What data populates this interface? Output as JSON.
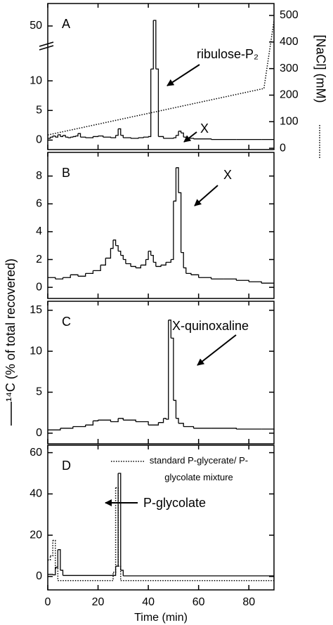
{
  "chart_data": [
    {
      "type": "line",
      "label": "A",
      "xlim": [
        0,
        90
      ],
      "xticks": [
        0,
        20,
        40,
        60,
        80
      ],
      "ylim": [
        -1.6,
        58
      ],
      "ybreak": [
        14,
        45
      ],
      "yticks": [
        0,
        5,
        10,
        50
      ],
      "y2lim": [
        -5,
        545
      ],
      "y2ticks": [
        0,
        100,
        200,
        300,
        400,
        500
      ],
      "y2label": "[NaCl] (mM)",
      "annotations": [
        "ribulose-P₂",
        "X"
      ],
      "series": [
        {
          "color": "#000000",
          "step": true,
          "dash": false,
          "x": [
            0,
            1,
            2,
            3,
            4,
            5,
            6,
            7,
            8,
            9,
            10,
            11,
            12,
            13,
            15,
            18,
            20,
            22,
            25,
            27,
            28,
            29,
            30,
            33,
            36,
            38,
            40,
            41,
            42,
            43,
            44,
            46,
            50,
            51,
            52,
            53,
            54,
            55,
            58,
            65,
            75,
            85,
            90
          ],
          "values": [
            0.3,
            0.5,
            0.7,
            0.5,
            0.9,
            0.6,
            0.8,
            0.5,
            0.4,
            0.5,
            0.6,
            0.7,
            1.1,
            0.5,
            0.4,
            0.6,
            0.7,
            0.5,
            0.4,
            0.8,
            1.9,
            0.8,
            0.4,
            0.3,
            0.4,
            0.5,
            0.6,
            12,
            52,
            12,
            0.6,
            0.3,
            0.4,
            0.8,
            1.5,
            1.2,
            0.5,
            0.3,
            0.2,
            0.1,
            0.1,
            0.1,
            0.1
          ]
        },
        {
          "color": "#000000",
          "step": false,
          "dash": true,
          "axis": "y2",
          "x": [
            0,
            86,
            90
          ],
          "values": [
            50,
            225,
            480
          ]
        }
      ]
    },
    {
      "type": "line",
      "label": "B",
      "xlim": [
        0,
        90
      ],
      "xticks": [
        0,
        20,
        40,
        60,
        80
      ],
      "ylim": [
        -0.8,
        9.7
      ],
      "yticks": [
        0,
        2,
        4,
        6,
        8
      ],
      "annotations": [
        "X"
      ],
      "series": [
        {
          "color": "#000000",
          "step": true,
          "dash": false,
          "x": [
            0,
            3,
            6,
            9,
            12,
            15,
            18,
            21,
            23,
            25,
            26,
            27,
            28,
            29,
            30,
            31,
            33,
            35,
            37,
            39,
            40,
            41,
            42,
            43,
            45,
            47,
            49,
            50,
            51,
            52,
            53,
            54,
            55,
            57,
            60,
            65,
            70,
            75,
            80,
            85,
            90
          ],
          "values": [
            0.7,
            0.6,
            0.7,
            0.9,
            0.8,
            1.0,
            1.2,
            1.6,
            2.1,
            2.8,
            3.4,
            3.0,
            2.6,
            2.3,
            2.0,
            1.7,
            1.5,
            1.4,
            1.6,
            2.0,
            2.6,
            2.3,
            1.8,
            1.5,
            1.6,
            1.8,
            2.0,
            6.2,
            8.6,
            6.8,
            2.5,
            1.4,
            1.0,
            0.9,
            0.7,
            0.6,
            0.6,
            0.5,
            0.4,
            0.3,
            0.3
          ]
        }
      ]
    },
    {
      "type": "line",
      "label": "C",
      "xlim": [
        0,
        90
      ],
      "xticks": [
        0,
        20,
        40,
        60,
        80
      ],
      "ylim": [
        -1.3,
        16.1
      ],
      "yticks": [
        0,
        5,
        10,
        15
      ],
      "ylabel": "¹⁴C (% of total recovered)",
      "annotations": [
        "X-quinoxaline"
      ],
      "series": [
        {
          "color": "#000000",
          "step": true,
          "dash": false,
          "x": [
            0,
            5,
            10,
            15,
            18,
            20,
            25,
            28,
            30,
            35,
            40,
            44,
            46,
            47,
            48,
            49,
            50,
            51,
            52,
            54,
            58,
            65,
            75,
            85,
            90
          ],
          "values": [
            0.4,
            0.6,
            0.8,
            1.0,
            1.5,
            1.6,
            1.4,
            1.8,
            1.6,
            1.4,
            1.0,
            1.3,
            1.8,
            1.7,
            13.8,
            11.6,
            4.0,
            1.8,
            1.2,
            0.8,
            0.6,
            0.6,
            0.5,
            0.5,
            0.4
          ]
        }
      ]
    },
    {
      "type": "line",
      "label": "D",
      "xlim": [
        0,
        90
      ],
      "xticks": [
        0,
        20,
        40,
        60,
        80
      ],
      "xlabel": "Time (min)",
      "ylim": [
        -6.5,
        63.6
      ],
      "yticks": [
        0,
        20,
        40,
        60
      ],
      "annotations": [
        "P-glycolate"
      ],
      "series": [
        {
          "color": "#000000",
          "step": true,
          "dash": false,
          "x": [
            0,
            2,
            3,
            4,
            5,
            6,
            27,
            28,
            29,
            30,
            90
          ],
          "values": [
            1,
            0.8,
            4.5,
            13,
            3,
            0.5,
            5,
            50,
            3,
            0.3,
            0.3
          ]
        },
        {
          "name": "standard P-glycerate/ P-glycolate mixture",
          "color": "#000000",
          "step": true,
          "dash": true,
          "x": [
            0,
            1,
            2,
            3,
            4,
            26,
            27,
            28,
            29,
            90
          ],
          "values": [
            8,
            10,
            17.5,
            4,
            -2,
            2,
            43,
            5,
            -2,
            -2
          ]
        }
      ]
    }
  ]
}
